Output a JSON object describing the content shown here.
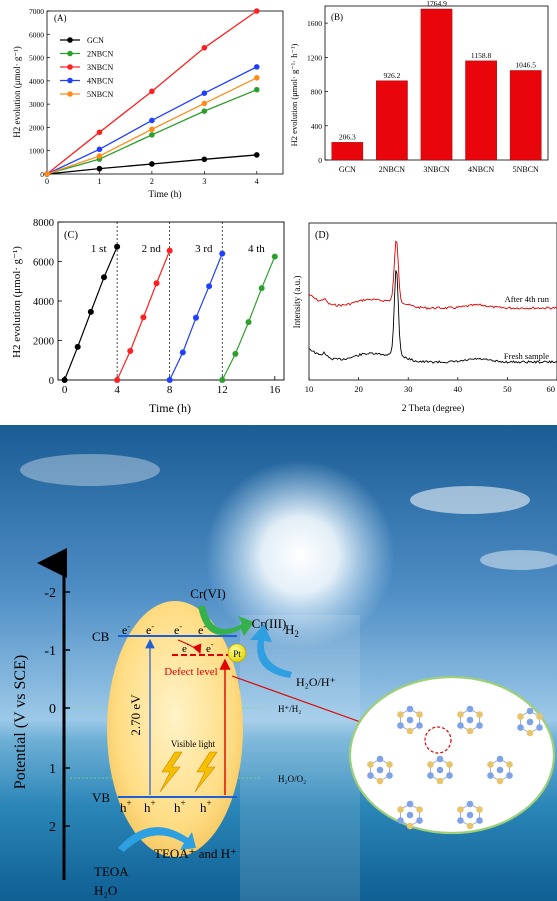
{
  "chart_data": [
    {
      "panel": "(A)",
      "type": "line",
      "xlabel": "Time (h)",
      "ylabel": "H2 evolution (μmol· g⁻¹)",
      "x": [
        0,
        1,
        2,
        3,
        4
      ],
      "xlim": [
        0,
        4.5
      ],
      "ylim": [
        0,
        7000
      ],
      "xticks": [
        0,
        1,
        2,
        3,
        4
      ],
      "yticks": [
        0,
        1000,
        2000,
        3000,
        4000,
        5000,
        6000,
        7000
      ],
      "legend_position": "top-left",
      "series": [
        {
          "name": "GCN",
          "color": "#000000",
          "values": [
            0,
            230,
            430,
            630,
            820
          ]
        },
        {
          "name": "2NBCN",
          "color": "#2ca02c",
          "values": [
            0,
            640,
            1680,
            2700,
            3620
          ]
        },
        {
          "name": "3NBCN",
          "color": "#ff2020",
          "values": [
            0,
            1790,
            3550,
            5420,
            7000
          ]
        },
        {
          "name": "4NBCN",
          "color": "#1f3fff",
          "values": [
            0,
            1060,
            2300,
            3470,
            4600
          ]
        },
        {
          "name": "5NBCN",
          "color": "#ff8c1a",
          "values": [
            0,
            770,
            1920,
            3030,
            4130
          ]
        }
      ]
    },
    {
      "panel": "(B)",
      "type": "bar",
      "xlabel": "",
      "ylabel": "H2 evolution (μmol· g⁻¹· h⁻¹)",
      "categories": [
        "GCN",
        "2NBCN",
        "3NBCN",
        "4NBCN",
        "5NBCN"
      ],
      "values": [
        206.3,
        926.2,
        1764.9,
        1158.8,
        1046.5
      ],
      "value_labels": [
        "206.3",
        "926.2",
        "1764.9",
        "1158.8",
        "1046.5"
      ],
      "ylim": [
        0,
        1800
      ],
      "yticks": [
        0,
        400,
        800,
        1200,
        1600
      ],
      "color": "#e8060c"
    },
    {
      "panel": "(C)",
      "type": "line",
      "xlabel": "Time (h)",
      "ylabel": "H2 evolution (μmol· g⁻¹)",
      "xlim": [
        -0.5,
        16.7
      ],
      "ylim": [
        0,
        8000
      ],
      "xticks": [
        0,
        4,
        8,
        12,
        16
      ],
      "yticks": [
        0,
        2000,
        4000,
        6000,
        8000
      ],
      "separators": [
        4,
        8,
        12
      ],
      "run_labels": [
        "1 st",
        "2 nd",
        "3 rd",
        "4 th"
      ],
      "runs": [
        {
          "color": "#000000",
          "x": [
            0,
            1,
            2,
            3,
            4
          ],
          "y": [
            0,
            1680,
            3450,
            5200,
            6750
          ]
        },
        {
          "color": "#ff2020",
          "x": [
            4,
            5,
            6,
            7,
            8
          ],
          "y": [
            0,
            1470,
            3170,
            4900,
            6550
          ]
        },
        {
          "color": "#1f3fff",
          "x": [
            8,
            9,
            10,
            11,
            12
          ],
          "y": [
            0,
            1400,
            3150,
            4750,
            6400
          ]
        },
        {
          "color": "#2ca02c",
          "x": [
            12,
            13,
            14,
            15,
            16
          ],
          "y": [
            0,
            1320,
            2930,
            4650,
            6250
          ]
        }
      ]
    },
    {
      "panel": "(D)",
      "type": "line",
      "xlabel": "2 Theta (degree)",
      "ylabel": "Intensity (a.u.)",
      "xlim": [
        10,
        60
      ],
      "xticks": [
        10,
        20,
        30,
        40,
        50,
        60
      ],
      "peak_2theta": 27.6,
      "series": [
        {
          "name": "After 4th run",
          "color": "#e00000"
        },
        {
          "name": "Fresh sample",
          "color": "#000000"
        }
      ]
    }
  ],
  "scheme": {
    "axis_label": "Potential (V vs SCE)",
    "ticks": [
      "-2",
      "-1",
      "0",
      "1",
      "2"
    ],
    "cb": "CB",
    "vb": "VB",
    "gap": "2.70 eV",
    "defect": "Defect level",
    "pt": "Pt",
    "visible_light": "Visible light",
    "cr6": "Cr(VI)",
    "cr3": "Cr(III)",
    "h2": "H",
    "h2o_h": "H₂O/H⁺",
    "hplus_h2": "H⁺/H₂",
    "h2o_o2": "H₂O/O₂",
    "teoa": "TEOA",
    "h2o": "H₂O",
    "teoa_products": "TEOA⁺ and H⁺",
    "electron": "e",
    "hole": "h"
  }
}
